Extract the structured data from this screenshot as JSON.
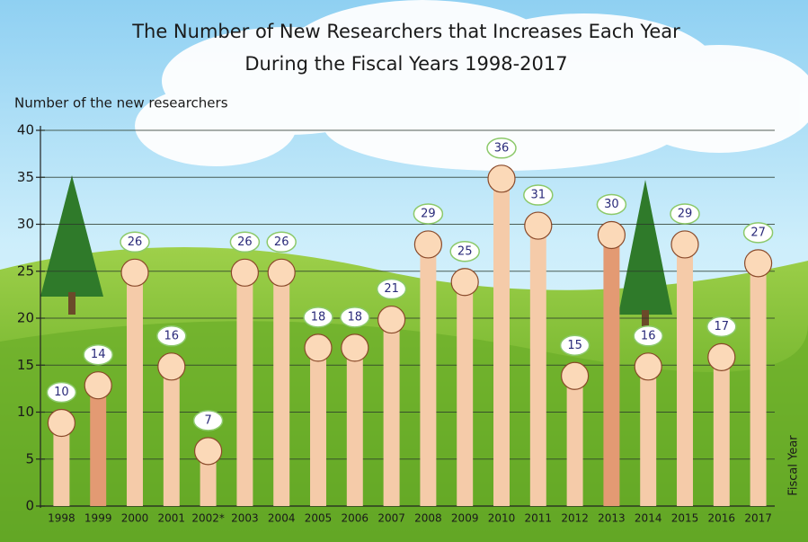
{
  "chart_data": {
    "type": "bar",
    "title": [
      "The Number of New Researchers that Increases Each Year",
      "During the Fiscal Years 1998-2017"
    ],
    "y_label": "Number of the new researchers",
    "x_label": "Fiscal Year",
    "categories": [
      "1998",
      "1999",
      "2000",
      "2001",
      "2002*",
      "2003",
      "2004",
      "2005",
      "2006",
      "2007",
      "2008",
      "2009",
      "2010",
      "2011",
      "2012",
      "2013",
      "2014",
      "2015",
      "2016",
      "2017"
    ],
    "values": [
      10,
      14,
      26,
      16,
      7,
      26,
      26,
      18,
      18,
      21,
      29,
      25,
      36,
      31,
      15,
      30,
      16,
      29,
      17,
      27
    ],
    "colors": [
      "#f5cba9",
      "#e39a73",
      "#f5cba9",
      "#f5cba9",
      "#f5cba9",
      "#f5cba9",
      "#f5cba9",
      "#f5cba9",
      "#f5cba9",
      "#f5cba9",
      "#f5cba9",
      "#f5cba9",
      "#f5cba9",
      "#f5cba9",
      "#f5cba9",
      "#e39a73",
      "#f5cba9",
      "#f5cba9",
      "#f5cba9",
      "#f5cba9"
    ],
    "ylim": [
      0,
      40
    ],
    "yticks": [
      0,
      5,
      10,
      15,
      20,
      25,
      30,
      35,
      40
    ],
    "grid": true
  }
}
